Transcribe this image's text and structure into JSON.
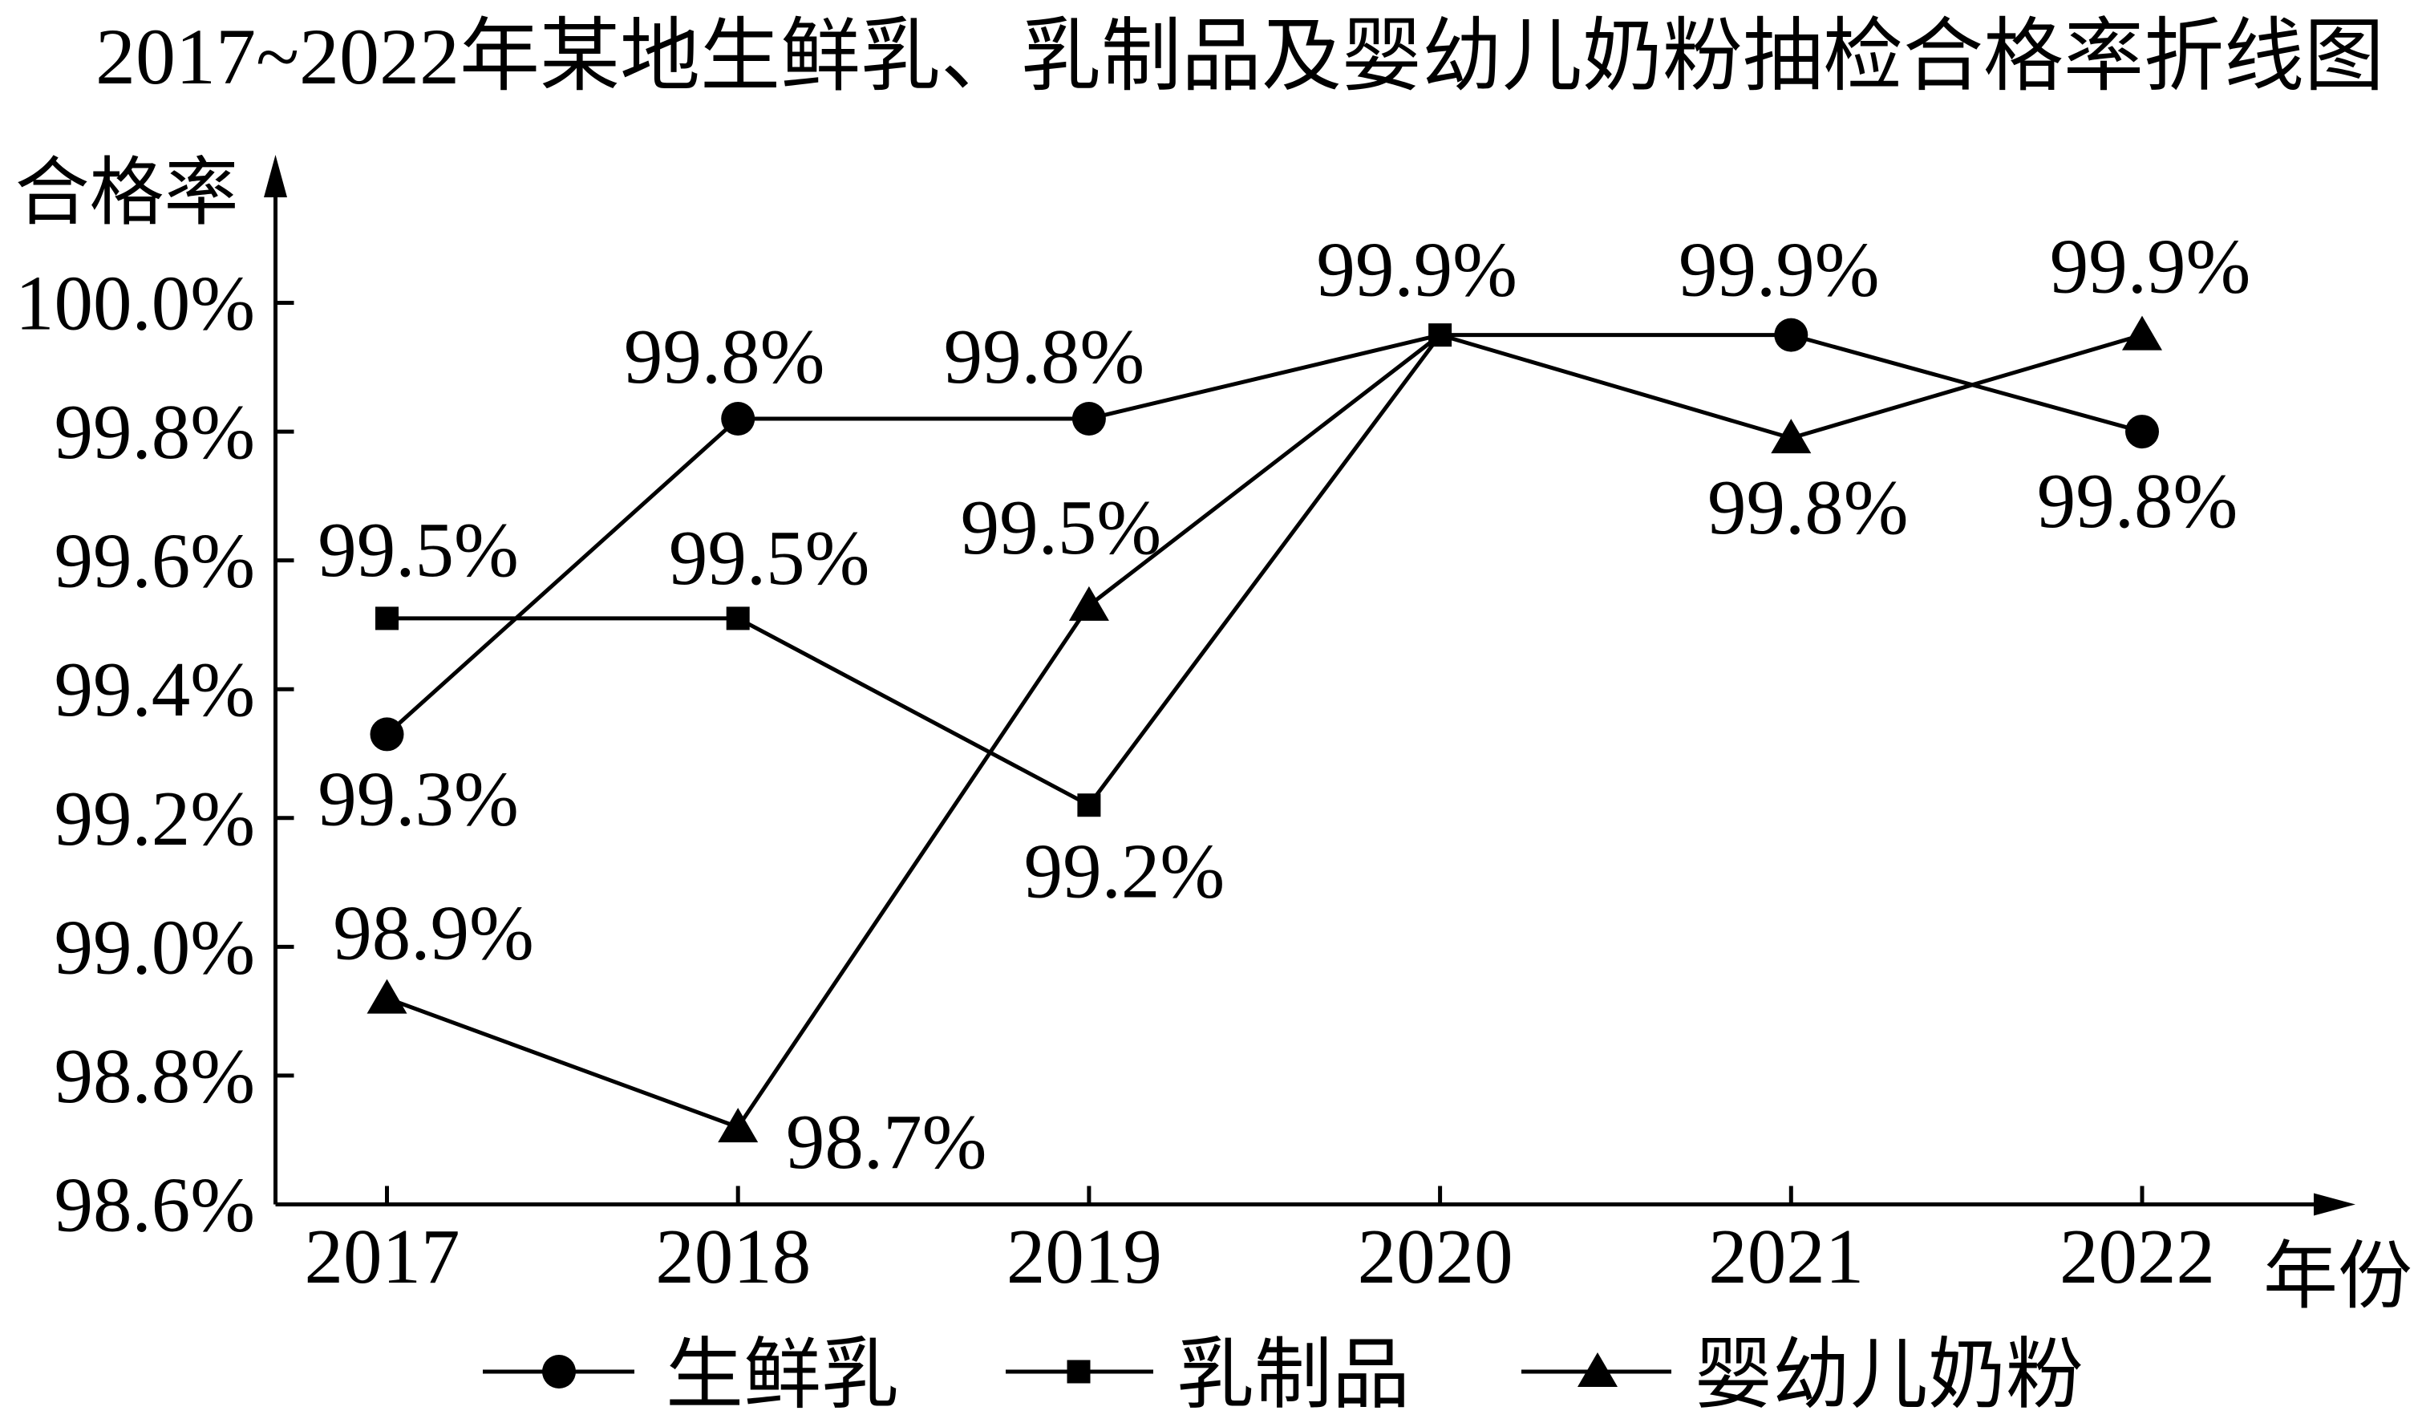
{
  "chart_data": {
    "type": "line",
    "title": "2017~2022年某地生鲜乳、乳制品及婴幼儿奶粉抽检合格率折线图",
    "xlabel": "年份",
    "ylabel": "合格率",
    "categories": [
      "2017",
      "2018",
      "2019",
      "2020",
      "2021",
      "2022"
    ],
    "ylim": [
      98.6,
      100.0
    ],
    "yticks": [
      98.6,
      98.8,
      99.0,
      99.2,
      99.4,
      99.6,
      99.8,
      100.0
    ],
    "ytick_labels": [
      "98.6%",
      "98.8%",
      "99.0%",
      "99.2%",
      "99.4%",
      "99.6%",
      "99.8%",
      "100.0%"
    ],
    "grid": false,
    "legend": "bottom",
    "series": [
      {
        "name": "生鲜乳",
        "marker": "circle",
        "color": "#000000",
        "values": [
          99.33,
          99.82,
          99.82,
          99.95,
          99.95,
          99.8
        ],
        "data_labels": [
          "99.3%",
          "99.8%",
          "99.8%",
          null,
          "99.9%",
          "99.8%"
        ]
      },
      {
        "name": "乳制品",
        "marker": "square",
        "color": "#000000",
        "values": [
          99.51,
          99.51,
          99.22,
          99.95,
          null,
          null
        ],
        "data_labels": [
          "99.5%",
          "99.5%",
          "99.2%",
          "99.9%",
          null,
          null
        ]
      },
      {
        "name": "婴幼儿奶粉",
        "marker": "triangle",
        "color": "#000000",
        "values": [
          98.92,
          98.72,
          99.53,
          99.95,
          99.79,
          99.95
        ],
        "data_labels": [
          "98.9%",
          "98.7%",
          "99.5%",
          null,
          "99.8%",
          "99.9%"
        ]
      }
    ]
  }
}
